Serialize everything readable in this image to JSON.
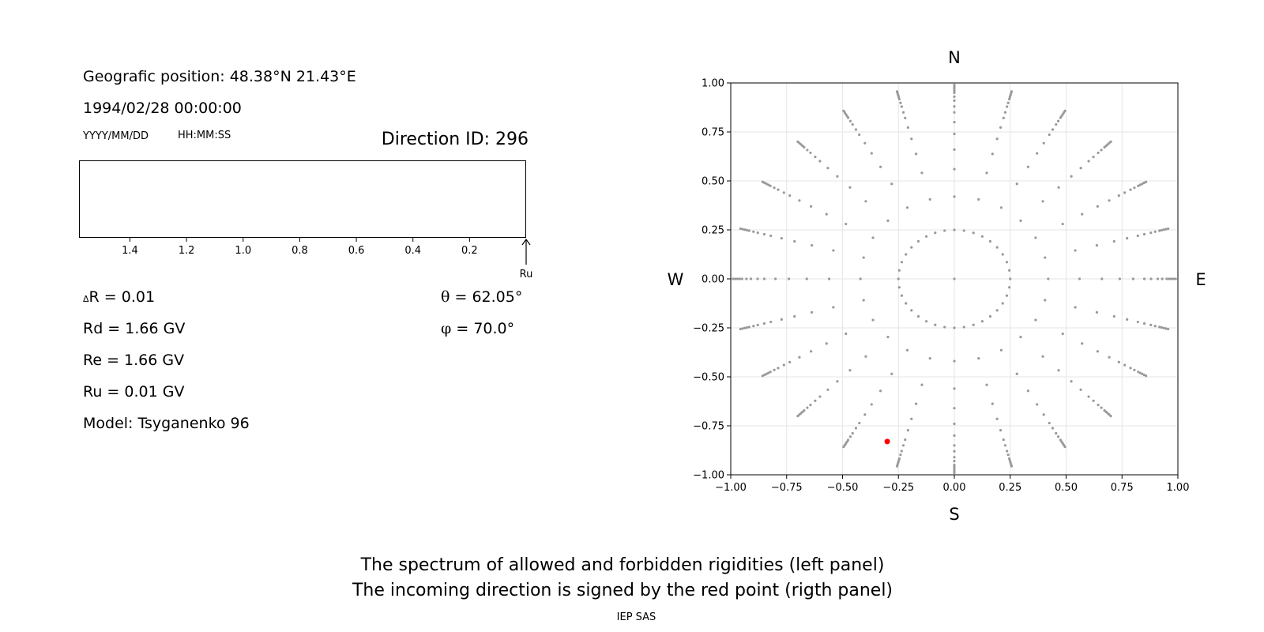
{
  "left_panel": {
    "geo_label": "Geografic position:",
    "geo_value": "48.38°N 21.43°E",
    "datetime": "1994/02/28 00:00:00",
    "date_format": "YYYY/MM/DD",
    "time_format": "HH:MM:SS",
    "direction_id": "Direction ID: 296",
    "spectrum": {
      "ticks": [
        "1.4",
        "1.2",
        "1.0",
        "0.8",
        "0.6",
        "0.4",
        "0.2"
      ],
      "tick_values": [
        1.4,
        1.2,
        1.0,
        0.8,
        0.6,
        0.4,
        0.2
      ],
      "xlim": [
        1.58,
        0.0
      ],
      "ru_marker_label": "Ru"
    },
    "delta_symbol": "Δ",
    "delta_r": "R = 0.01",
    "rd": "Rd = 1.66 GV",
    "re": "Re = 1.66 GV",
    "ru": "Ru = 0.01 GV",
    "model": "Model: Tsyganenko 96",
    "theta_symbol": "θ",
    "theta": "= 62.05°",
    "phi_symbol": "φ",
    "phi": "= 70.0°"
  },
  "chart_data": {
    "type": "scatter",
    "compass": {
      "N": "N",
      "S": "S",
      "E": "E",
      "W": "W"
    },
    "xlim": [
      -1.0,
      1.0
    ],
    "ylim": [
      -1.0,
      1.0
    ],
    "xticks": [
      -1.0,
      -0.75,
      -0.5,
      -0.25,
      0.0,
      0.25,
      0.5,
      0.75,
      1.0
    ],
    "yticks": [
      -1.0,
      -0.75,
      -0.5,
      -0.25,
      0.0,
      0.25,
      0.5,
      0.75,
      1.0
    ],
    "xtick_labels": [
      "−1.00",
      "−0.75",
      "−0.50",
      "−0.25",
      "0.00",
      "0.25",
      "0.50",
      "0.75",
      "1.00"
    ],
    "ytick_labels": [
      "−1.00",
      "−0.75",
      "−0.50",
      "−0.25",
      "0.00",
      "0.25",
      "0.50",
      "0.75",
      "1.00"
    ],
    "grid": true,
    "series": [
      {
        "grid_points": {
          "center": [
            0,
            0
          ],
          "ring_radii": [
            0.25,
            0.42,
            0.56,
            0.66,
            0.74,
            0.8,
            0.85,
            0.88,
            0.91,
            0.93,
            0.95,
            0.96,
            0.97,
            0.98,
            0.99
          ],
          "ring_point_counts": [
            36,
            24,
            24,
            24,
            24,
            24,
            24,
            24,
            24,
            24,
            24,
            24,
            24,
            24,
            24
          ],
          "color": "#999999"
        }
      },
      {
        "highlight": {
          "x": -0.3,
          "y": -0.83,
          "color": "#ff0000"
        }
      }
    ]
  },
  "footer": {
    "line1": "The spectrum of allowed and forbidden rigidities (left panel)",
    "line2": "The incoming direction is signed by the red point (rigth panel)",
    "credit": "IEP SAS"
  }
}
